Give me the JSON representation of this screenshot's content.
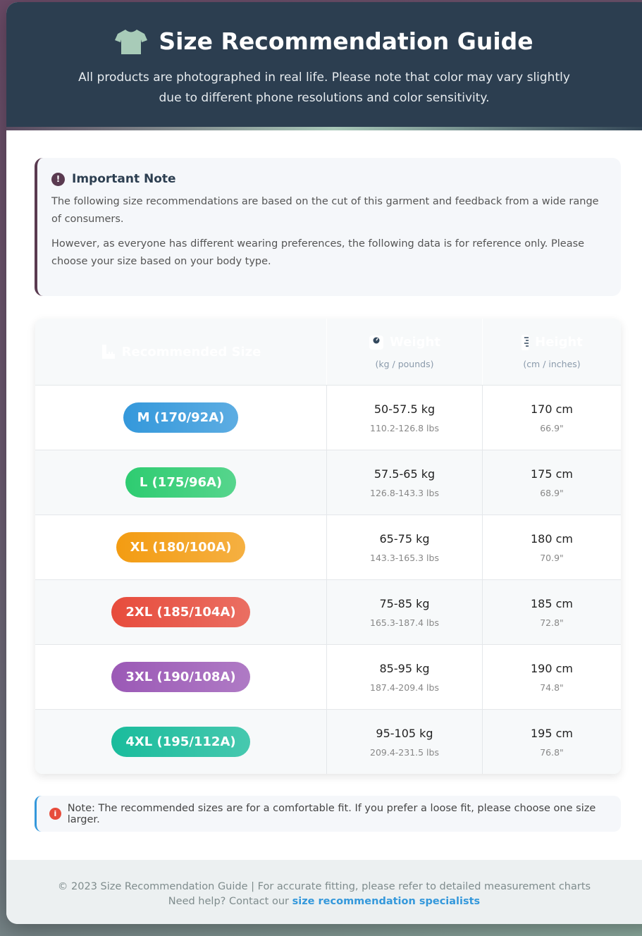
{
  "header": {
    "title": "Size Recommendation Guide",
    "subtitle": "All products are photographed in real life. Please note that color may vary slightly due to different phone resolutions and color sensitivity.",
    "icon": "tshirt-icon"
  },
  "note": {
    "title": "Important Note",
    "paragraphs": [
      "The following size recommendations are based on the cut of this garment and feedback from a wide range of consumers.",
      "However, as everyone has different wearing preferences, the following data is for reference only. Please choose your size based on your body type."
    ]
  },
  "table": {
    "headers": [
      {
        "label": "Recommended Size",
        "icon": "ruler-icon"
      },
      {
        "label": "Weight",
        "sub": "(kg / pounds)",
        "icon": "weight-scale-icon"
      },
      {
        "label": "Height",
        "sub": "(cm / inches)",
        "icon": "ruler-vertical-icon"
      }
    ],
    "rows": [
      {
        "size": "M (170/92A)",
        "color": "#3498db",
        "weight": "50-57.5 kg",
        "weight_lbs": "110.2-126.8 lbs",
        "height": "170 cm",
        "height_in": "66.9\""
      },
      {
        "size": "L (175/96A)",
        "color": "#2ecc71",
        "weight": "57.5-65 kg",
        "weight_lbs": "126.8-143.3 lbs",
        "height": "175 cm",
        "height_in": "68.9\""
      },
      {
        "size": "XL (180/100A)",
        "color": "#f39c12",
        "weight": "65-75 kg",
        "weight_lbs": "143.3-165.3 lbs",
        "height": "180 cm",
        "height_in": "70.9\""
      },
      {
        "size": "2XL (185/104A)",
        "color": "#e74c3c",
        "weight": "75-85 kg",
        "weight_lbs": "165.3-187.4 lbs",
        "height": "185 cm",
        "height_in": "72.8\""
      },
      {
        "size": "3XL (190/108A)",
        "color": "#9b59b6",
        "weight": "85-95 kg",
        "weight_lbs": "187.4-209.4 lbs",
        "height": "190 cm",
        "height_in": "74.8\""
      },
      {
        "size": "4XL (195/112A)",
        "color": "#1abc9c",
        "weight": "95-105 kg",
        "weight_lbs": "209.4-231.5 lbs",
        "height": "195 cm",
        "height_in": "76.8\""
      }
    ]
  },
  "fit_note": "Note: The recommended sizes are for a comfortable fit. If you prefer a loose fit, please choose one size larger.",
  "footer": {
    "line1": "© 2023 Size Recommendation Guide | For accurate fitting, please refer to detailed measurement charts",
    "line2_prefix": "Need help? Contact our ",
    "link": "size recommendation specialists"
  }
}
